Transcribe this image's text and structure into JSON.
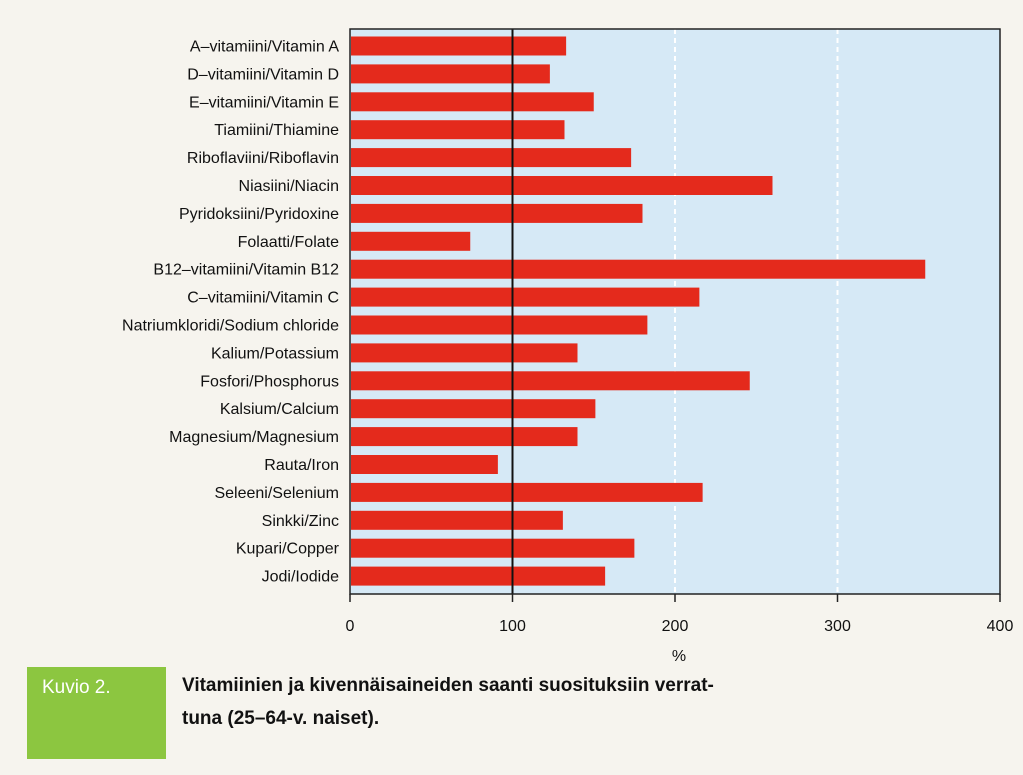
{
  "chart_data": {
    "type": "bar",
    "orientation": "horizontal",
    "categories": [
      "A–vitamiini/Vitamin A",
      "D–vitamiini/Vitamin D",
      "E–vitamiini/Vitamin E",
      "Tiamiini/Thiamine",
      "Riboflaviini/Riboflavin",
      "Niasiini/Niacin",
      "Pyridoksiini/Pyridoxine",
      "Folaatti/Folate",
      "B12–vitamiini/Vitamin B12",
      "C–vitamiini/Vitamin C",
      "Natriumkloridi/Sodium chloride",
      "Kalium/Potassium",
      "Fosfori/Phosphorus",
      "Kalsium/Calcium",
      "Magnesium/Magnesium",
      "Rauta/Iron",
      "Seleeni/Selenium",
      "Sinkki/Zinc",
      "Kupari/Copper",
      "Jodi/Iodide"
    ],
    "values": [
      133,
      123,
      150,
      132,
      173,
      260,
      180,
      74,
      354,
      215,
      183,
      140,
      246,
      151,
      140,
      91,
      217,
      131,
      175,
      157
    ],
    "xlabel": "%",
    "ylabel": "",
    "xlim": [
      0,
      400
    ],
    "xticks": [
      "0",
      "100",
      "200",
      "300",
      "400"
    ],
    "reference_line": 100,
    "grid": "vertical dashed white at 200 and 300",
    "colors": {
      "bar": "#e42a1c",
      "plot_background": "#d6e9f6",
      "reference_line": "#111111"
    }
  },
  "caption": {
    "badge": "Kuvio 2.",
    "line1": "Vitamiinien ja kivennäisaineiden saanti suosituksiin verrat-",
    "line2": "tuna (25–64-v. naiset).",
    "badge_color": "#8cc640"
  }
}
